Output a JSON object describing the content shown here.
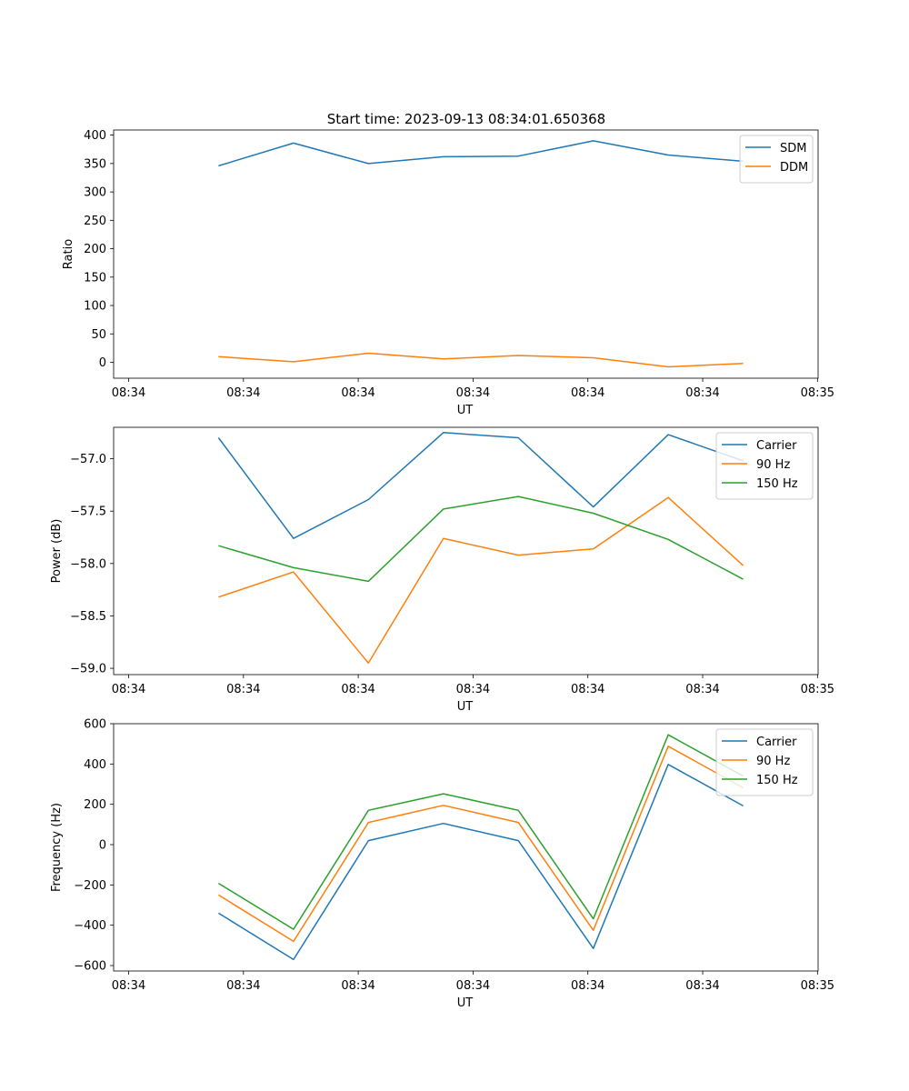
{
  "figure_title": "Start time: 2023-09-13 08:34:01.650368",
  "chart_data": [
    {
      "type": "line",
      "title": "Start time: 2023-09-13 08:34:01.650368",
      "xlabel": "UT",
      "ylabel": "Ratio",
      "x": [
        0.6,
        1.1,
        1.6,
        2.1,
        2.6,
        3.1,
        3.6,
        4.1
      ],
      "xlim": [
        -0.1,
        4.6
      ],
      "x_ticks": [
        0,
        0.766,
        1.532,
        2.298,
        3.064,
        3.83,
        4.596
      ],
      "x_tick_labels": [
        "08:34",
        "08:34",
        "08:34",
        "08:34",
        "08:34",
        "08:34",
        "08:35"
      ],
      "ylim": [
        -28,
        409
      ],
      "y_ticks": [
        0,
        50,
        100,
        150,
        200,
        250,
        300,
        350,
        400
      ],
      "y_tick_labels": [
        "0",
        "50",
        "100",
        "150",
        "200",
        "250",
        "300",
        "350",
        "400"
      ],
      "legend_position": "top-right",
      "series": [
        {
          "name": "SDM",
          "color": "#1f77b4",
          "values": [
            346,
            386,
            350,
            362,
            363,
            390,
            365,
            354
          ]
        },
        {
          "name": "DDM",
          "color": "#ff7f0e",
          "values": [
            10,
            1,
            16,
            6,
            12,
            8,
            -8,
            -2
          ]
        }
      ]
    },
    {
      "type": "line",
      "title": "",
      "xlabel": "UT",
      "ylabel": "Power (dB)",
      "x": [
        0.6,
        1.1,
        1.6,
        2.1,
        2.6,
        3.1,
        3.6,
        4.1
      ],
      "xlim": [
        -0.1,
        4.6
      ],
      "x_ticks": [
        0,
        0.766,
        1.532,
        2.298,
        3.064,
        3.83,
        4.596
      ],
      "x_tick_labels": [
        "08:34",
        "08:34",
        "08:34",
        "08:34",
        "08:34",
        "08:34",
        "08:35"
      ],
      "ylim": [
        -59.06,
        -56.7
      ],
      "y_ticks": [
        -59.0,
        -58.5,
        -58.0,
        -57.5,
        -57.0
      ],
      "y_tick_labels": [
        "−59.0",
        "−58.5",
        "−58.0",
        "−57.5",
        "−57.0"
      ],
      "legend_position": "top-right",
      "series": [
        {
          "name": "Carrier",
          "color": "#1f77b4",
          "values": [
            -56.8,
            -57.76,
            -57.39,
            -56.75,
            -56.8,
            -57.46,
            -56.77,
            -57.02
          ]
        },
        {
          "name": "90 Hz",
          "color": "#ff7f0e",
          "values": [
            -58.32,
            -58.08,
            -58.95,
            -57.76,
            -57.92,
            -57.86,
            -57.37,
            -58.02
          ]
        },
        {
          "name": "150 Hz",
          "color": "#2ca02c",
          "values": [
            -57.83,
            -58.04,
            -58.17,
            -57.48,
            -57.36,
            -57.52,
            -57.77,
            -58.15
          ]
        }
      ]
    },
    {
      "type": "line",
      "title": "",
      "xlabel": "UT",
      "ylabel": "Frequency (Hz)",
      "x": [
        0.6,
        1.1,
        1.6,
        2.1,
        2.6,
        3.1,
        3.6,
        4.1
      ],
      "xlim": [
        -0.1,
        4.6
      ],
      "x_ticks": [
        0,
        0.766,
        1.532,
        2.298,
        3.064,
        3.83,
        4.596
      ],
      "x_tick_labels": [
        "08:34",
        "08:34",
        "08:34",
        "08:34",
        "08:34",
        "08:34",
        "08:35"
      ],
      "ylim": [
        -627,
        600
      ],
      "y_ticks": [
        -600,
        -400,
        -200,
        0,
        200,
        400,
        600
      ],
      "y_tick_labels": [
        "−600",
        "−400",
        "−200",
        "0",
        "200",
        "400",
        "600"
      ],
      "legend_position": "top-right",
      "series": [
        {
          "name": "Carrier",
          "color": "#1f77b4",
          "values": [
            -340,
            -570,
            20,
            105,
            20,
            -515,
            398,
            192
          ]
        },
        {
          "name": "90 Hz",
          "color": "#ff7f0e",
          "values": [
            -250,
            -480,
            110,
            195,
            110,
            -425,
            488,
            282
          ]
        },
        {
          "name": "150 Hz",
          "color": "#2ca02c",
          "values": [
            -192,
            -420,
            170,
            252,
            170,
            -368,
            545,
            340
          ]
        }
      ]
    }
  ]
}
